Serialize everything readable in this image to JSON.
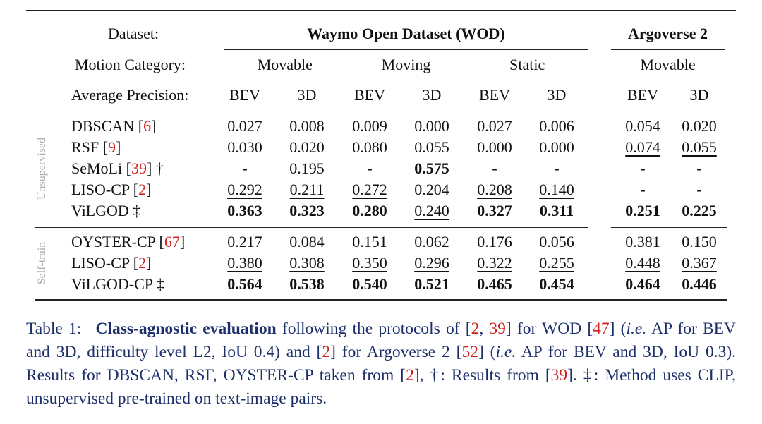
{
  "header": {
    "dataset_label": "Dataset:",
    "motion_label": "Motion Category:",
    "ap_label": "Average Precision:"
  },
  "groups": [
    {
      "name": "Waymo Open Dataset (WOD)",
      "categories": [
        "Movable",
        "Moving",
        "Static"
      ]
    },
    {
      "name": "Argoverse 2",
      "categories": [
        "Movable"
      ]
    }
  ],
  "columns": [
    "BEV",
    "3D",
    "BEV",
    "3D",
    "BEV",
    "3D",
    "BEV",
    "3D"
  ],
  "sections": [
    {
      "name": "Unsupervised",
      "rows": [
        {
          "method": [
            {
              "text": "DBSCAN ["
            },
            {
              "text": "6",
              "style": "link"
            },
            {
              "text": "]"
            }
          ],
          "cells": [
            "0.027",
            "0.008",
            "0.009",
            "0.000",
            "0.027",
            "0.006",
            "0.054",
            "0.020"
          ],
          "bold": [],
          "underline": []
        },
        {
          "method": [
            {
              "text": "RSF ["
            },
            {
              "text": "9",
              "style": "link"
            },
            {
              "text": "]"
            }
          ],
          "cells": [
            "0.030",
            "0.020",
            "0.080",
            "0.055",
            "0.000",
            "0.000",
            "0.074",
            "0.055"
          ],
          "bold": [],
          "underline": [
            6,
            7
          ]
        },
        {
          "method": [
            {
              "text": "SeMoLi ["
            },
            {
              "text": "39",
              "style": "link"
            },
            {
              "text": "] †"
            }
          ],
          "cells": [
            "-",
            "0.195",
            "-",
            "0.575",
            "-",
            "-",
            "-",
            "-"
          ],
          "bold": [
            3
          ],
          "underline": []
        },
        {
          "method": [
            {
              "text": "LISO-CP ["
            },
            {
              "text": "2",
              "style": "link"
            },
            {
              "text": "]"
            }
          ],
          "cells": [
            "0.292",
            "0.211",
            "0.272",
            "0.204",
            "0.208",
            "0.140",
            "-",
            "-"
          ],
          "bold": [],
          "underline": [
            0,
            1,
            2,
            4,
            5
          ]
        },
        {
          "method": [
            {
              "text": "ViLGOD ‡"
            }
          ],
          "cells": [
            "0.363",
            "0.323",
            "0.280",
            "0.240",
            "0.327",
            "0.311",
            "0.251",
            "0.225"
          ],
          "bold": [
            0,
            1,
            2,
            4,
            5,
            6,
            7
          ],
          "underline": [
            3
          ]
        }
      ]
    },
    {
      "name": "Self-train",
      "rows": [
        {
          "method": [
            {
              "text": "OYSTER-CP ["
            },
            {
              "text": "67",
              "style": "link"
            },
            {
              "text": "]"
            }
          ],
          "cells": [
            "0.217",
            "0.084",
            "0.151",
            "0.062",
            "0.176",
            "0.056",
            "0.381",
            "0.150"
          ],
          "bold": [],
          "underline": []
        },
        {
          "method": [
            {
              "text": "LISO-CP ["
            },
            {
              "text": "2",
              "style": "link"
            },
            {
              "text": "]"
            }
          ],
          "cells": [
            "0.380",
            "0.308",
            "0.350",
            "0.296",
            "0.322",
            "0.255",
            "0.448",
            "0.367"
          ],
          "bold": [],
          "underline": [
            0,
            1,
            2,
            3,
            4,
            5,
            6,
            7
          ]
        },
        {
          "method": [
            {
              "text": "ViLGOD-CP ‡"
            }
          ],
          "cells": [
            "0.564",
            "0.538",
            "0.540",
            "0.521",
            "0.465",
            "0.454",
            "0.464",
            "0.446"
          ],
          "bold": [
            0,
            1,
            2,
            3,
            4,
            5,
            6,
            7
          ],
          "underline": []
        }
      ]
    }
  ],
  "caption": [
    {
      "text": "Table 1: "
    },
    {
      "text": "Class-agnostic evaluation",
      "style": "bold"
    },
    {
      "text": " following the protocols of ["
    },
    {
      "text": "2",
      "style": "link"
    },
    {
      "text": ", "
    },
    {
      "text": "39",
      "style": "link"
    },
    {
      "text": "] for WOD ["
    },
    {
      "text": "47",
      "style": "link"
    },
    {
      "text": "] ("
    },
    {
      "text": "i.e.",
      "style": "italic"
    },
    {
      "text": " AP for BEV and 3D, difficulty level L2, IoU 0.4) and ["
    },
    {
      "text": "2",
      "style": "link"
    },
    {
      "text": "] for Argoverse 2 ["
    },
    {
      "text": "52",
      "style": "link"
    },
    {
      "text": "] ("
    },
    {
      "text": "i.e.",
      "style": "italic"
    },
    {
      "text": " AP for BEV and 3D, IoU 0.3). Results for DBSCAN, RSF, OYSTER-CP taken from ["
    },
    {
      "text": "2",
      "style": "link"
    },
    {
      "text": "], †: Results from ["
    },
    {
      "text": "39",
      "style": "link"
    },
    {
      "text": "]. ‡: Method uses CLIP, unsupervised pre-trained on text-image pairs."
    }
  ]
}
